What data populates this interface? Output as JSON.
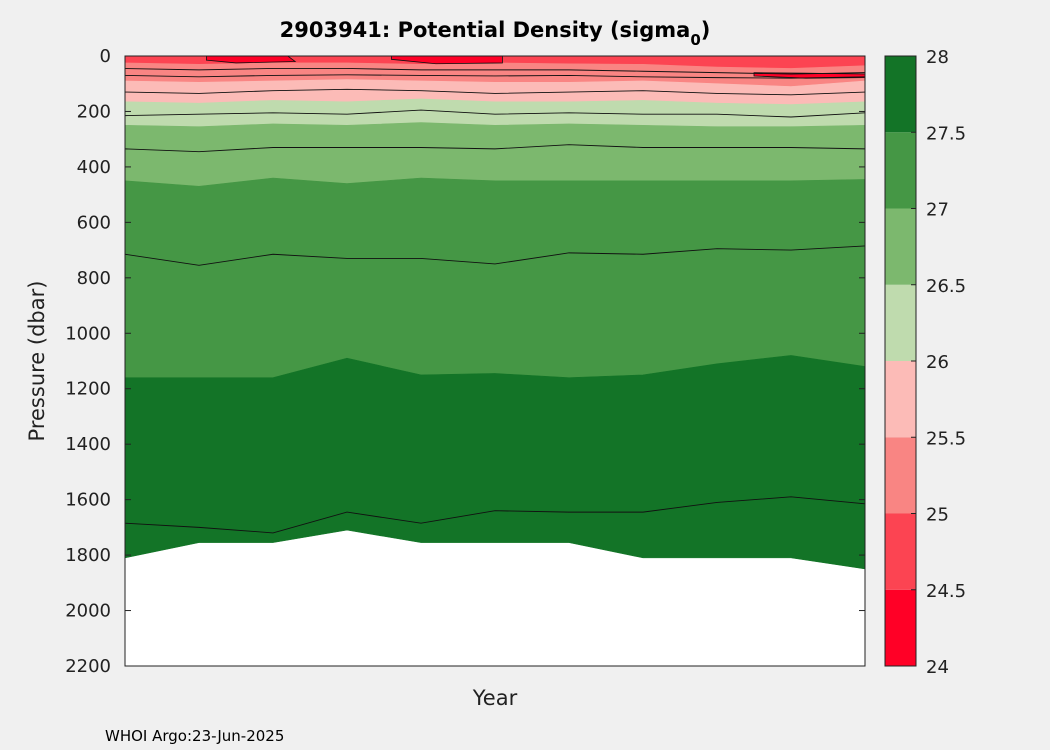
{
  "chart_data": {
    "type": "area",
    "title_main": "2903941: Potential Density (sigma",
    "title_sub": "0",
    "title_end": ")",
    "xlabel": "Year",
    "ylabel": "Pressure (dbar)",
    "footer": "WHOI Argo:23-Jun-2025",
    "ylim": [
      0,
      2200
    ],
    "y_reversed": true,
    "yticks": [
      0,
      200,
      400,
      600,
      800,
      1000,
      1200,
      1400,
      1600,
      1800,
      2000,
      2200
    ],
    "colorbar": {
      "range": [
        24,
        28
      ],
      "ticks": [
        24,
        24.5,
        25,
        25.5,
        26,
        26.5,
        27,
        27.5,
        28
      ],
      "levels": [
        {
          "from": 24.0,
          "to": 24.5,
          "color": "#ff0026"
        },
        {
          "from": 24.5,
          "to": 25.0,
          "color": "#fc4452"
        },
        {
          "from": 25.0,
          "to": 25.5,
          "color": "#f98583"
        },
        {
          "from": 25.5,
          "to": 26.0,
          "color": "#fcbbb7"
        },
        {
          "from": 26.0,
          "to": 26.5,
          "color": "#bfdbae"
        },
        {
          "from": 26.5,
          "to": 27.0,
          "color": "#7cb86e"
        },
        {
          "from": 27.0,
          "to": 27.5,
          "color": "#459745"
        },
        {
          "from": 27.5,
          "to": 28.0,
          "color": "#137427"
        }
      ]
    },
    "profile_x": [
      0,
      1,
      2,
      3,
      4,
      5,
      6,
      7,
      8,
      9,
      10
    ],
    "max_depth": [
      1810,
      1755,
      1755,
      1710,
      1755,
      1755,
      1755,
      1810,
      1810,
      1810,
      1850
    ],
    "bands": [
      {
        "sigma": 24.5,
        "color": "#fc4452",
        "top": [
          0,
          0,
          0,
          0,
          0,
          0,
          0,
          0,
          0,
          0,
          0
        ],
        "bottom": [
          25,
          30,
          25,
          25,
          30,
          25,
          28,
          30,
          40,
          45,
          35
        ]
      },
      {
        "sigma": 25.0,
        "color": "#f98583",
        "top": [
          25,
          30,
          25,
          25,
          30,
          25,
          28,
          30,
          40,
          45,
          35
        ],
        "bottom": [
          90,
          95,
          90,
          85,
          90,
          95,
          95,
          90,
          100,
          110,
          90
        ]
      },
      {
        "sigma": 25.5,
        "color": "#fcbbb7",
        "top": [
          90,
          95,
          90,
          85,
          90,
          95,
          95,
          90,
          100,
          110,
          90
        ],
        "bottom": [
          165,
          170,
          160,
          165,
          155,
          165,
          165,
          160,
          170,
          175,
          165
        ]
      },
      {
        "sigma": 26.0,
        "color": "#bfdbae",
        "top": [
          165,
          170,
          160,
          165,
          155,
          165,
          165,
          160,
          170,
          175,
          165
        ],
        "bottom": [
          250,
          255,
          245,
          250,
          240,
          250,
          245,
          250,
          255,
          255,
          250
        ]
      },
      {
        "sigma": 26.5,
        "color": "#7cb86e",
        "top": [
          250,
          255,
          245,
          250,
          240,
          250,
          245,
          250,
          255,
          255,
          250
        ],
        "bottom": [
          450,
          470,
          440,
          460,
          440,
          450,
          450,
          450,
          450,
          450,
          445
        ]
      },
      {
        "sigma": 27.0,
        "color": "#459745",
        "top": [
          450,
          470,
          440,
          460,
          440,
          450,
          450,
          450,
          450,
          450,
          445
        ],
        "bottom": [
          1160,
          1160,
          1160,
          1090,
          1150,
          1145,
          1160,
          1150,
          1110,
          1080,
          1120
        ]
      },
      {
        "sigma": 27.5,
        "color": "#137427",
        "top": [
          1160,
          1160,
          1160,
          1090,
          1150,
          1145,
          1160,
          1150,
          1110,
          1080,
          1120
        ],
        "bottom": [
          1810,
          1755,
          1755,
          1710,
          1755,
          1755,
          1755,
          1810,
          1810,
          1810,
          1850
        ]
      }
    ],
    "contours": [
      {
        "level": 24.75,
        "depth": [
          45,
          50,
          45,
          45,
          50,
          50,
          50,
          55,
          60,
          65,
          60
        ]
      },
      {
        "level": 25.25,
        "depth": [
          70,
          75,
          70,
          68,
          70,
          72,
          70,
          75,
          78,
          80,
          75
        ]
      },
      {
        "level": 25.75,
        "depth": [
          130,
          135,
          125,
          120,
          125,
          135,
          130,
          125,
          135,
          140,
          130
        ]
      },
      {
        "level": 26.25,
        "depth": [
          215,
          210,
          205,
          210,
          195,
          210,
          205,
          210,
          210,
          220,
          205
        ]
      },
      {
        "level": 26.75,
        "depth": [
          335,
          345,
          330,
          330,
          330,
          335,
          320,
          330,
          330,
          330,
          335
        ]
      },
      {
        "level": 27.25,
        "depth": [
          715,
          755,
          715,
          730,
          730,
          750,
          710,
          715,
          695,
          700,
          685
        ]
      },
      {
        "level": 27.75,
        "depth": [
          1685,
          1700,
          1720,
          1645,
          1685,
          1640,
          1645,
          1645,
          1610,
          1590,
          1615
        ]
      }
    ],
    "surface_patches": [
      {
        "color": "#ff0026",
        "x": [
          1.1,
          1.5,
          2.2,
          2.3,
          1.5,
          1.1
        ],
        "y": [
          0,
          0,
          0,
          20,
          25,
          15
        ]
      },
      {
        "color": "#ff0026",
        "x": [
          3.6,
          4.2,
          5.1,
          5.1,
          4.2,
          3.6
        ],
        "y": [
          0,
          0,
          0,
          25,
          28,
          12
        ]
      },
      {
        "color": "#ff0026",
        "x": [
          8.5,
          9.2,
          10.0,
          10.0,
          9.2,
          8.5
        ],
        "y": [
          60,
          62,
          65,
          78,
          80,
          72
        ]
      }
    ]
  }
}
